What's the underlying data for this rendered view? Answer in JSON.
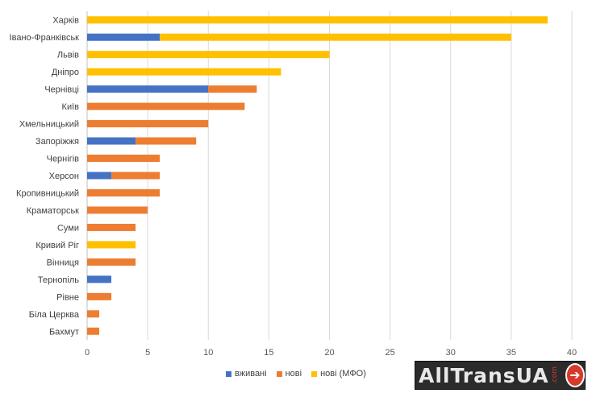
{
  "chart_data": {
    "type": "bar",
    "orientation": "horizontal",
    "stacked": true,
    "title": "",
    "xlabel": "",
    "ylabel": "",
    "xlim": [
      0,
      40
    ],
    "xticks": [
      0,
      5,
      10,
      15,
      20,
      25,
      30,
      35,
      40
    ],
    "grid": true,
    "legend_position": "bottom",
    "categories": [
      "Харків",
      "Івано-Франківськ",
      "Львів",
      "Дніпро",
      "Чернівці",
      "Київ",
      "Хмельницький",
      "Запоріжжя",
      "Чернігів",
      "Херсон",
      "Кропивницький",
      "Краматорськ",
      "Суми",
      "Кривий Ріг",
      "Вінниця",
      "Тернопіль",
      "Рівне",
      "Біла Церква",
      "Бахмут"
    ],
    "series": [
      {
        "name": "вживані",
        "color": "#4472c4",
        "values": [
          0,
          6,
          0,
          0,
          10,
          0,
          0,
          4,
          0,
          2,
          0,
          0,
          0,
          0,
          0,
          2,
          0,
          0,
          0
        ]
      },
      {
        "name": "нові",
        "color": "#ed7d31",
        "values": [
          0,
          0,
          0,
          0,
          4,
          13,
          10,
          5,
          6,
          4,
          6,
          5,
          4,
          0,
          4,
          0,
          2,
          1,
          1
        ]
      },
      {
        "name": "нові (МФО)",
        "color": "#ffc000",
        "values": [
          38,
          29,
          20,
          16,
          0,
          0,
          0,
          0,
          0,
          0,
          0,
          0,
          0,
          4,
          0,
          0,
          0,
          0,
          0
        ]
      }
    ]
  },
  "logo": {
    "text": "AllTransUA",
    "suffix": ".com",
    "arrow": "➔"
  }
}
